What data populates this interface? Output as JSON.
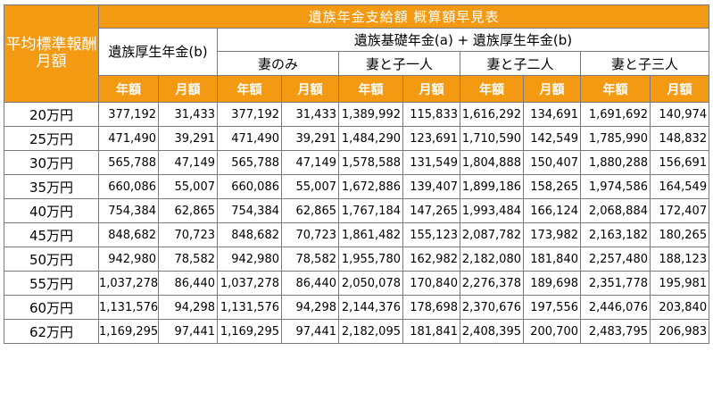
{
  "title": "遺族年金支給額 概算額早見表",
  "row_header": "平均標準報酬月額",
  "col_koseinenkin": "遺族厚生年金(b)",
  "col_group": "遺族基礎年金(a) + 遺族厚生年金(b)",
  "subgroups": [
    "妻のみ",
    "妻と子一人",
    "妻と子二人",
    "妻と子三人"
  ],
  "units": [
    "年額",
    "月額",
    "年額",
    "月額",
    "年額",
    "月額",
    "年額",
    "月額",
    "年額",
    "月額"
  ],
  "rows": [
    {
      "label": "20万円",
      "values": [
        "377,192",
        "31,433",
        "377,192",
        "31,433",
        "1,389,992",
        "115,833",
        "1,616,292",
        "134,691",
        "1,691,692",
        "140,974"
      ]
    },
    {
      "label": "25万円",
      "values": [
        "471,490",
        "39,291",
        "471,490",
        "39,291",
        "1,484,290",
        "123,691",
        "1,710,590",
        "142,549",
        "1,785,990",
        "148,832"
      ]
    },
    {
      "label": "30万円",
      "values": [
        "565,788",
        "47,149",
        "565,788",
        "47,149",
        "1,578,588",
        "131,549",
        "1,804,888",
        "150,407",
        "1,880,288",
        "156,691"
      ]
    },
    {
      "label": "35万円",
      "values": [
        "660,086",
        "55,007",
        "660,086",
        "55,007",
        "1,672,886",
        "139,407",
        "1,899,186",
        "158,265",
        "1,974,586",
        "164,549"
      ]
    },
    {
      "label": "40万円",
      "values": [
        "754,384",
        "62,865",
        "754,384",
        "62,865",
        "1,767,184",
        "147,265",
        "1,993,484",
        "166,124",
        "2,068,884",
        "172,407"
      ]
    },
    {
      "label": "45万円",
      "values": [
        "848,682",
        "70,723",
        "848,682",
        "70,723",
        "1,861,482",
        "155,123",
        "2,087,782",
        "173,982",
        "2,163,182",
        "180,265"
      ]
    },
    {
      "label": "50万円",
      "values": [
        "942,980",
        "78,582",
        "942,980",
        "78,582",
        "1,955,780",
        "162,982",
        "2,182,080",
        "181,840",
        "2,257,480",
        "188,123"
      ]
    },
    {
      "label": "55万円",
      "values": [
        "1,037,278",
        "86,440",
        "1,037,278",
        "86,440",
        "2,050,078",
        "170,840",
        "2,276,378",
        "189,698",
        "2,351,778",
        "195,981"
      ]
    },
    {
      "label": "60万円",
      "values": [
        "1,131,576",
        "94,298",
        "1,131,576",
        "94,298",
        "2,144,376",
        "178,698",
        "2,370,676",
        "197,556",
        "2,446,076",
        "203,840"
      ]
    },
    {
      "label": "62万円",
      "values": [
        "1,169,295",
        "97,441",
        "1,169,295",
        "97,441",
        "2,182,095",
        "181,841",
        "2,408,395",
        "200,700",
        "2,483,795",
        "206,983"
      ]
    }
  ],
  "colors": {
    "header_orange": "#f39a12",
    "border": "#7a7a7a"
  }
}
